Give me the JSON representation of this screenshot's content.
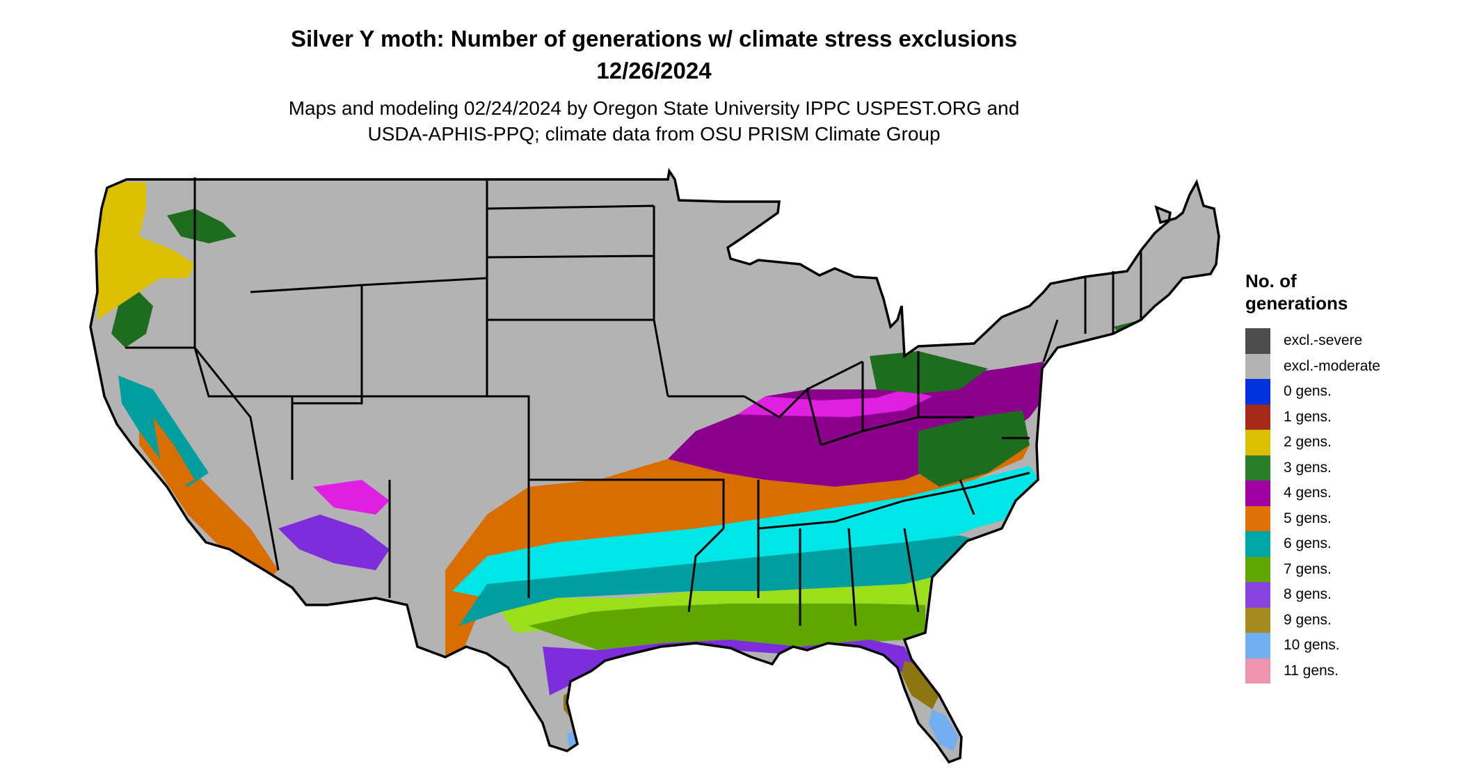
{
  "title": {
    "line1": "Silver Y moth: Number of generations w/ climate stress exclusions",
    "line2": "12/26/2024"
  },
  "subtitle": {
    "line1": "Maps and modeling 02/24/2024 by Oregon State University IPPC USPEST.ORG and",
    "line2": "USDA-APHIS-PPQ; climate data from OSU PRISM Climate Group"
  },
  "legend": {
    "title_line1": "No. of",
    "title_line2": "generations",
    "items": [
      {
        "label": "excl.-severe",
        "color": "#4d4d4d"
      },
      {
        "label": "excl.-moderate",
        "color": "#b3b3b3"
      },
      {
        "label": "0 gens.",
        "color": "#0033dd"
      },
      {
        "label": "1 gens.",
        "color": "#a52a17"
      },
      {
        "label": "2 gens.",
        "color": "#dcbf00"
      },
      {
        "label": "3 gens.",
        "color": "#2a7d2a"
      },
      {
        "label": "4 gens.",
        "color": "#a300a3"
      },
      {
        "label": "5 gens.",
        "color": "#de7206"
      },
      {
        "label": "6 gens.",
        "color": "#00a6a6"
      },
      {
        "label": "7 gens.",
        "color": "#5fa600"
      },
      {
        "label": "8 gens.",
        "color": "#8644dc"
      },
      {
        "label": "9 gens.",
        "color": "#a38b22"
      },
      {
        "label": "10 gens.",
        "color": "#72aef0"
      },
      {
        "label": "11 gens.",
        "color": "#ef94ae"
      }
    ]
  },
  "map_colors": {
    "excluded": "#b3b3b3",
    "gen2": "#dcbf00",
    "gen3": "#1e6d1e",
    "gen4": "#8b008b",
    "gen4_magenta": "#e020e0",
    "gen5": "#d96e00",
    "gen6": "#009e9e",
    "gen6_cyan": "#00e5e5",
    "gen7": "#5fa600",
    "gen7_light": "#9adf1a",
    "gen8": "#7d2ddc",
    "gen9": "#8b7612",
    "gen10": "#72aef0",
    "gen11": "#ef94ae",
    "border": "#000000"
  }
}
